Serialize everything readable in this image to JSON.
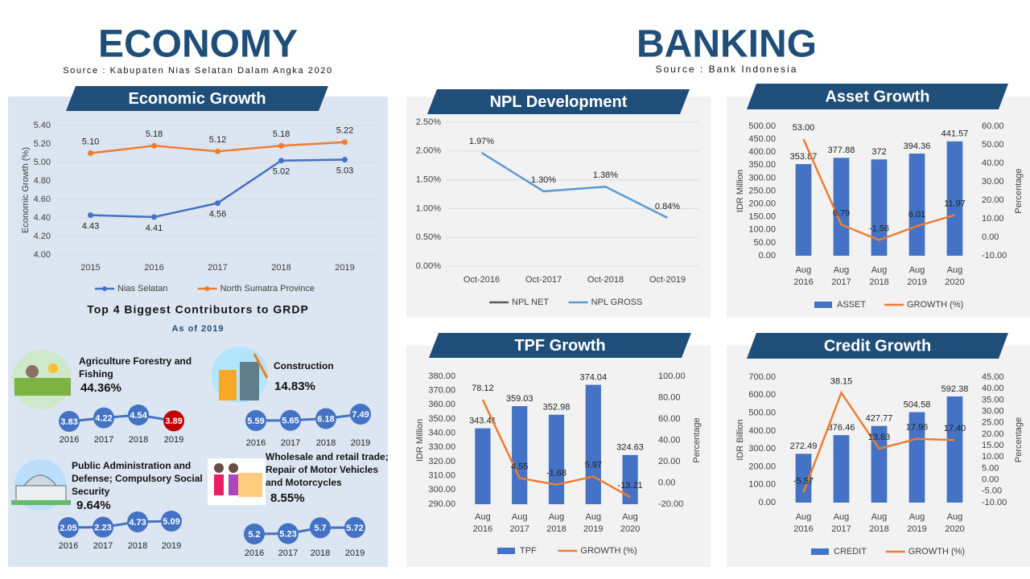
{
  "economy": {
    "title": "ECONOMY",
    "source": "Source : Kabupaten Nias Selatan Dalam Angka 2020"
  },
  "banking": {
    "title": "BANKING",
    "source": "Source : Bank Indonesia"
  },
  "chart_data": [
    {
      "type": "line",
      "title": "Economic Growth",
      "ylabel": "Economic Growth (%)",
      "categories": [
        "2015",
        "2016",
        "2017",
        "2018",
        "2019"
      ],
      "series": [
        {
          "name": "Nias Selatan",
          "color": "#4472c4",
          "values": [
            4.43,
            4.41,
            4.56,
            5.02,
            5.03
          ]
        },
        {
          "name": "North Sumatra Province",
          "color": "#ed7d31",
          "values": [
            5.1,
            5.18,
            5.12,
            5.18,
            5.22
          ],
          "value_labels": [
            "5.10",
            "5.18",
            "5.12",
            "5.18",
            "5.22"
          ]
        }
      ],
      "ylim": [
        4.0,
        5.4
      ],
      "yticks": [
        {
          "value": 4.0,
          "label": "4.00"
        },
        {
          "value": 4.2,
          "label": "4.20"
        },
        {
          "value": 4.4,
          "label": "4.40"
        },
        {
          "value": 4.6,
          "label": "4.60"
        },
        {
          "value": 4.8,
          "label": "4.80"
        },
        {
          "value": 5.0,
          "label": "5.00"
        },
        {
          "value": 5.2,
          "label": "5.20"
        },
        {
          "value": 5.4,
          "label": "5.40"
        }
      ],
      "grid": true,
      "markers": true
    },
    {
      "type": "line",
      "title": "NPL Development",
      "categories": [
        "Oct-2016",
        "Oct-2017",
        "Oct-2018",
        "Oct-2019"
      ],
      "series": [
        {
          "name": "NPL NET",
          "color": "#595959",
          "values": [
            null,
            null,
            null,
            null
          ]
        },
        {
          "name": "NPL GROSS",
          "color": "#5b9bd5",
          "values": [
            1.97,
            1.3,
            1.38,
            0.84
          ],
          "value_labels": [
            "1.97%",
            "1.30%",
            "1.38%",
            "0.84%"
          ]
        }
      ],
      "ylim": [
        0,
        2.5
      ],
      "yticks": [
        {
          "value": 0,
          "label": "0.00%"
        },
        {
          "value": 0.5,
          "label": "0.50%"
        },
        {
          "value": 1.0,
          "label": "1.00%"
        },
        {
          "value": 1.5,
          "label": "1.50%"
        },
        {
          "value": 2.0,
          "label": "2.00%"
        },
        {
          "value": 2.5,
          "label": "2.50%"
        }
      ],
      "grid": true,
      "markers": false
    },
    {
      "type": "bar",
      "title": "Asset Growth",
      "ylabel": "IDR Million",
      "y2label": "Percentage",
      "categories": [
        "Aug 2016",
        "Aug 2017",
        "Aug 2018",
        "Aug 2019",
        "Aug 2020"
      ],
      "series": [
        {
          "name": "ASSET",
          "type": "bar",
          "color": "#4472c4",
          "values": [
            353.87,
            377.88,
            372,
            394.36,
            441.57
          ]
        },
        {
          "name": "GROWTH (%)",
          "type": "line",
          "axis": "y2",
          "color": "#ed7d31",
          "values": [
            53.0,
            6.79,
            -1.56,
            6.01,
            11.97
          ],
          "value_labels": [
            "53.00",
            "6.79",
            "-1.56",
            "6.01",
            "11.97"
          ]
        }
      ],
      "ylim": [
        0,
        500
      ],
      "yticks": [
        {
          "value": 0,
          "label": "0.00"
        },
        {
          "value": 50,
          "label": "50.00"
        },
        {
          "value": 100,
          "label": "100.00"
        },
        {
          "value": 150,
          "label": "150.00"
        },
        {
          "value": 200,
          "label": "200.00"
        },
        {
          "value": 250,
          "label": "250.00"
        },
        {
          "value": 300,
          "label": "300.00"
        },
        {
          "value": 350,
          "label": "350.00"
        },
        {
          "value": 400,
          "label": "400.00"
        },
        {
          "value": 450,
          "label": "450.00"
        },
        {
          "value": 500,
          "label": "500.00"
        }
      ],
      "y2lim": [
        -10,
        60
      ],
      "y2ticks": [
        {
          "value": -10,
          "label": "-10.00"
        },
        {
          "value": 0,
          "label": "0.00"
        },
        {
          "value": 10,
          "label": "10.00"
        },
        {
          "value": 20,
          "label": "20.00"
        },
        {
          "value": 30,
          "label": "30.00"
        },
        {
          "value": 40,
          "label": "40.00"
        },
        {
          "value": 50,
          "label": "50.00"
        },
        {
          "value": 60,
          "label": "60.00"
        }
      ],
      "grid": false
    },
    {
      "type": "bar",
      "title": "TPF Growth",
      "ylabel": "IDR Million",
      "y2label": "Percentage",
      "categories": [
        "Aug 2016",
        "Aug 2017",
        "Aug 2018",
        "Aug 2019",
        "Aug 2020"
      ],
      "series": [
        {
          "name": "TPF",
          "type": "bar",
          "color": "#4472c4",
          "values": [
            343.41,
            359.03,
            352.98,
            374.04,
            324.63
          ]
        },
        {
          "name": "GROWTH (%)",
          "type": "line",
          "axis": "y2",
          "color": "#ed7d31",
          "values": [
            78.12,
            4.55,
            -1.68,
            5.97,
            -13.21
          ]
        }
      ],
      "ylim": [
        290,
        380
      ],
      "yticks": [
        {
          "value": 290,
          "label": "290.00"
        },
        {
          "value": 300,
          "label": "300.00"
        },
        {
          "value": 310,
          "label": "310.00"
        },
        {
          "value": 320,
          "label": "320.00"
        },
        {
          "value": 330,
          "label": "330.00"
        },
        {
          "value": 340,
          "label": "340.00"
        },
        {
          "value": 350,
          "label": "350.00"
        },
        {
          "value": 360,
          "label": "360.00"
        },
        {
          "value": 370,
          "label": "370.00"
        },
        {
          "value": 380,
          "label": "380.00"
        }
      ],
      "y2lim": [
        -20,
        100
      ],
      "y2ticks": [
        {
          "value": -20,
          "label": "-20.00"
        },
        {
          "value": 0,
          "label": "0.00"
        },
        {
          "value": 20,
          "label": "20.00"
        },
        {
          "value": 40,
          "label": "40.00"
        },
        {
          "value": 60,
          "label": "60.00"
        },
        {
          "value": 80,
          "label": "80.00"
        },
        {
          "value": 100,
          "label": "100.00"
        }
      ],
      "grid": false
    },
    {
      "type": "bar",
      "title": "Credit Growth",
      "ylabel": "IDR Billion",
      "y2label": "Percentage",
      "categories": [
        "Aug 2016",
        "Aug 2017",
        "Aug 2018",
        "Aug 2019",
        "Aug 2020"
      ],
      "series": [
        {
          "name": "CREDIT",
          "type": "bar",
          "color": "#4472c4",
          "values": [
            272.49,
            376.46,
            427.77,
            504.58,
            592.38
          ]
        },
        {
          "name": "GROWTH (%)",
          "type": "line",
          "axis": "y2",
          "color": "#ed7d31",
          "values": [
            -5.57,
            38.15,
            13.63,
            17.96,
            17.4
          ],
          "value_labels": [
            "-5.57",
            "38.15",
            "13.63",
            "17.96",
            "17.40"
          ]
        }
      ],
      "ylim": [
        0,
        700
      ],
      "yticks": [
        {
          "value": 0,
          "label": "0.00"
        },
        {
          "value": 100,
          "label": "100.00"
        },
        {
          "value": 200,
          "label": "200.00"
        },
        {
          "value": 300,
          "label": "300.00"
        },
        {
          "value": 400,
          "label": "400.00"
        },
        {
          "value": 500,
          "label": "500.00"
        },
        {
          "value": 600,
          "label": "600.00"
        },
        {
          "value": 700,
          "label": "700.00"
        }
      ],
      "y2lim": [
        -10,
        45
      ],
      "y2ticks": [
        {
          "value": -10,
          "label": "-10.00"
        },
        {
          "value": -5,
          "label": "-5.00"
        },
        {
          "value": 0,
          "label": "0.00"
        },
        {
          "value": 5,
          "label": "5.00"
        },
        {
          "value": 10,
          "label": "10.00"
        },
        {
          "value": 15,
          "label": "15.00"
        },
        {
          "value": 20,
          "label": "20.00"
        },
        {
          "value": 25,
          "label": "25.00"
        },
        {
          "value": 30,
          "label": "30.00"
        },
        {
          "value": 35,
          "label": "35.00"
        },
        {
          "value": 40,
          "label": "40.00"
        },
        {
          "value": 45,
          "label": "45.00"
        }
      ],
      "grid": false
    }
  ],
  "contributors": {
    "title": "Top 4 Biggest Contributors to GRDP",
    "subtitle": "As of 2019",
    "items": [
      {
        "name": "Agriculture Forestry and Fishing",
        "share": "44.36%",
        "years": [
          "2016",
          "2017",
          "2018",
          "2019"
        ],
        "values": [
          3.83,
          4.22,
          4.54,
          3.89
        ],
        "value_labels": [
          "3.83",
          "4.22",
          "4.54",
          "3.89"
        ],
        "colors": [
          "#4472c4",
          "#4472c4",
          "#4472c4",
          "#c00000"
        ]
      },
      {
        "name": "Construction",
        "share": "14.83%",
        "years": [
          "2016",
          "2017",
          "2018",
          "2019"
        ],
        "values": [
          5.59,
          5.65,
          6.18,
          7.49
        ],
        "colors": [
          "#4472c4",
          "#4472c4",
          "#4472c4",
          "#4472c4"
        ]
      },
      {
        "name": "Public Administration and Defense; Compulsory Social Security",
        "share": "9.64%",
        "years": [
          "2016",
          "2017",
          "2018",
          "2019"
        ],
        "values": [
          2.05,
          2.23,
          4.73,
          5.09
        ],
        "colors": [
          "#4472c4",
          "#4472c4",
          "#4472c4",
          "#4472c4"
        ]
      },
      {
        "name": "Wholesale and retail trade; Repair of Motor Vehicles and Motorcycles",
        "share": "8.55%",
        "years": [
          "2016",
          "2017",
          "2018",
          "2019"
        ],
        "values": [
          5.2,
          5.23,
          5.7,
          5.72
        ],
        "colors": [
          "#4472c4",
          "#4472c4",
          "#4472c4",
          "#4472c4"
        ]
      }
    ]
  }
}
